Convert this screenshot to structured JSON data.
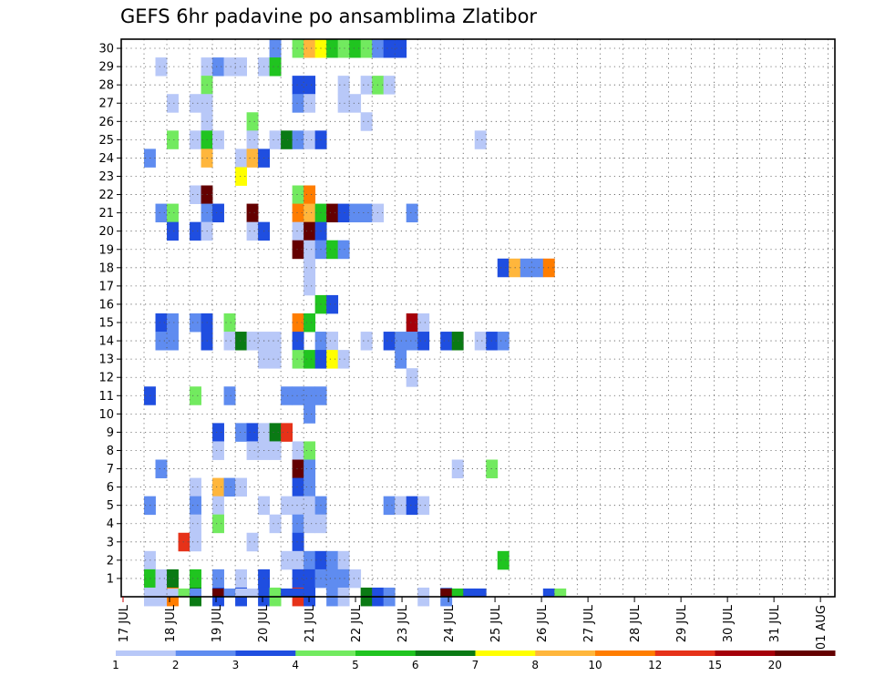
{
  "title": "GEFS 6hr padavine po ansamblima Zlatibor",
  "chart_data": {
    "type": "heatmap",
    "title": "GEFS 6hr padavine po ansamblima Zlatibor",
    "xlabel": "",
    "ylabel": "",
    "x_ticks": [
      "17 JUL",
      "18 JUL",
      "19 JUL",
      "20 JUL",
      "21 JUL",
      "22 JUL",
      "23 JUL",
      "24 JUL",
      "25 JUL",
      "26 JUL",
      "27 JUL",
      "28 JUL",
      "29 JUL",
      "30 JUL",
      "31 JUL",
      "01 AUG"
    ],
    "y_ticks": [
      "1",
      "2",
      "3",
      "4",
      "5",
      "6",
      "7",
      "8",
      "9",
      "10",
      "11",
      "12",
      "13",
      "14",
      "15",
      "16",
      "17",
      "18",
      "19",
      "20",
      "21",
      "22",
      "23",
      "24",
      "25",
      "26",
      "27",
      "28",
      "29",
      "30"
    ],
    "time_steps_per_day": 4,
    "xlim": [
      0,
      60
    ],
    "ylim": [
      0,
      30
    ],
    "grid": true,
    "legend": {
      "placement": "bottom",
      "labels": [
        "1",
        "2",
        "3",
        "4",
        "5",
        "6",
        "7",
        "8",
        "10",
        "12",
        "15",
        "20"
      ],
      "colors": [
        "#b8c8f8",
        "#5f8cf0",
        "#1f4ee0",
        "#72ea5f",
        "#20c420",
        "#0a7a14",
        "#ffff00",
        "#ffb63c",
        "#ff7d00",
        "#e63219",
        "#a5000a",
        "#640000"
      ]
    },
    "cells": [
      [
        30,
        13,
        2
      ],
      [
        30,
        15,
        4
      ],
      [
        30,
        16,
        8
      ],
      [
        30,
        17,
        7
      ],
      [
        30,
        18,
        5
      ],
      [
        30,
        19,
        4
      ],
      [
        30,
        20,
        5
      ],
      [
        30,
        21,
        4
      ],
      [
        30,
        22,
        2
      ],
      [
        30,
        23,
        3
      ],
      [
        30,
        24,
        3
      ],
      [
        29,
        3,
        1
      ],
      [
        29,
        7,
        1
      ],
      [
        29,
        8,
        2
      ],
      [
        29,
        9,
        1
      ],
      [
        29,
        10,
        1
      ],
      [
        29,
        12,
        1
      ],
      [
        29,
        13,
        5
      ],
      [
        28,
        7,
        4
      ],
      [
        28,
        15,
        3
      ],
      [
        28,
        16,
        3
      ],
      [
        28,
        19,
        1
      ],
      [
        28,
        21,
        1
      ],
      [
        28,
        22,
        4
      ],
      [
        28,
        23,
        1
      ],
      [
        27,
        4,
        1
      ],
      [
        27,
        6,
        1
      ],
      [
        27,
        7,
        1
      ],
      [
        27,
        15,
        2
      ],
      [
        27,
        16,
        1
      ],
      [
        27,
        19,
        1
      ],
      [
        27,
        20,
        1
      ],
      [
        26,
        7,
        1
      ],
      [
        26,
        11,
        4
      ],
      [
        26,
        21,
        1
      ],
      [
        25,
        4,
        4
      ],
      [
        25,
        6,
        1
      ],
      [
        25,
        7,
        5
      ],
      [
        25,
        8,
        1
      ],
      [
        25,
        11,
        1
      ],
      [
        25,
        13,
        1
      ],
      [
        25,
        14,
        6
      ],
      [
        25,
        15,
        2
      ],
      [
        25,
        16,
        1
      ],
      [
        25,
        17,
        3
      ],
      [
        25,
        31,
        1
      ],
      [
        24,
        2,
        2
      ],
      [
        24,
        7,
        8
      ],
      [
        24,
        10,
        1
      ],
      [
        24,
        11,
        8
      ],
      [
        24,
        12,
        3
      ],
      [
        23,
        10,
        7
      ],
      [
        22,
        6,
        1
      ],
      [
        22,
        7,
        13
      ],
      [
        22,
        15,
        4
      ],
      [
        22,
        16,
        9
      ],
      [
        21,
        3,
        2
      ],
      [
        21,
        4,
        4
      ],
      [
        21,
        7,
        2
      ],
      [
        21,
        8,
        3
      ],
      [
        21,
        11,
        13
      ],
      [
        21,
        15,
        9
      ],
      [
        21,
        16,
        8
      ],
      [
        21,
        17,
        5
      ],
      [
        21,
        18,
        12
      ],
      [
        21,
        19,
        3
      ],
      [
        21,
        20,
        2
      ],
      [
        21,
        21,
        2
      ],
      [
        21,
        22,
        1
      ],
      [
        21,
        25,
        2
      ],
      [
        20,
        4,
        3
      ],
      [
        20,
        6,
        3
      ],
      [
        20,
        7,
        1
      ],
      [
        20,
        11,
        1
      ],
      [
        20,
        12,
        3
      ],
      [
        20,
        15,
        1
      ],
      [
        20,
        16,
        13
      ],
      [
        20,
        17,
        3
      ],
      [
        19,
        15,
        13
      ],
      [
        19,
        16,
        1
      ],
      [
        19,
        17,
        2
      ],
      [
        19,
        18,
        5
      ],
      [
        19,
        19,
        2
      ],
      [
        18,
        16,
        1
      ],
      [
        18,
        33,
        3
      ],
      [
        18,
        34,
        8
      ],
      [
        18,
        35,
        2
      ],
      [
        18,
        36,
        2
      ],
      [
        18,
        37,
        9
      ],
      [
        17,
        16,
        1
      ],
      [
        16,
        17,
        5
      ],
      [
        16,
        18,
        3
      ],
      [
        15,
        3,
        3
      ],
      [
        15,
        4,
        2
      ],
      [
        15,
        6,
        2
      ],
      [
        15,
        7,
        3
      ],
      [
        15,
        9,
        4
      ],
      [
        15,
        15,
        9
      ],
      [
        15,
        16,
        5
      ],
      [
        15,
        25,
        11
      ],
      [
        15,
        26,
        1
      ],
      [
        14,
        3,
        2
      ],
      [
        14,
        4,
        2
      ],
      [
        14,
        7,
        3
      ],
      [
        14,
        9,
        1
      ],
      [
        14,
        10,
        6
      ],
      [
        14,
        11,
        1
      ],
      [
        14,
        12,
        1
      ],
      [
        14,
        13,
        1
      ],
      [
        14,
        15,
        3
      ],
      [
        14,
        17,
        2
      ],
      [
        14,
        18,
        1
      ],
      [
        14,
        21,
        1
      ],
      [
        14,
        23,
        3
      ],
      [
        14,
        24,
        2
      ],
      [
        14,
        25,
        2
      ],
      [
        14,
        26,
        3
      ],
      [
        14,
        28,
        3
      ],
      [
        14,
        29,
        6
      ],
      [
        14,
        31,
        1
      ],
      [
        14,
        32,
        3
      ],
      [
        14,
        33,
        2
      ],
      [
        13,
        12,
        1
      ],
      [
        13,
        13,
        1
      ],
      [
        13,
        15,
        4
      ],
      [
        13,
        16,
        5
      ],
      [
        13,
        17,
        3
      ],
      [
        13,
        18,
        7
      ],
      [
        13,
        19,
        1
      ],
      [
        13,
        24,
        2
      ],
      [
        12,
        25,
        1
      ],
      [
        11,
        2,
        3
      ],
      [
        11,
        6,
        4
      ],
      [
        11,
        9,
        2
      ],
      [
        11,
        14,
        2
      ],
      [
        11,
        15,
        2
      ],
      [
        11,
        16,
        2
      ],
      [
        11,
        17,
        2
      ],
      [
        10,
        16,
        2
      ],
      [
        9,
        8,
        3
      ],
      [
        9,
        10,
        2
      ],
      [
        9,
        11,
        3
      ],
      [
        9,
        12,
        1
      ],
      [
        9,
        13,
        6
      ],
      [
        9,
        14,
        10
      ],
      [
        8,
        8,
        1
      ],
      [
        8,
        11,
        1
      ],
      [
        8,
        12,
        1
      ],
      [
        8,
        13,
        1
      ],
      [
        8,
        15,
        1
      ],
      [
        8,
        16,
        4
      ],
      [
        7,
        3,
        2
      ],
      [
        7,
        15,
        12
      ],
      [
        7,
        16,
        2
      ],
      [
        7,
        29,
        1
      ],
      [
        7,
        32,
        4
      ],
      [
        6,
        6,
        1
      ],
      [
        6,
        8,
        8
      ],
      [
        6,
        9,
        2
      ],
      [
        6,
        10,
        1
      ],
      [
        6,
        15,
        3
      ],
      [
        6,
        16,
        2
      ],
      [
        5,
        2,
        2
      ],
      [
        5,
        6,
        2
      ],
      [
        5,
        8,
        1
      ],
      [
        5,
        12,
        1
      ],
      [
        5,
        14,
        1
      ],
      [
        5,
        15,
        1
      ],
      [
        5,
        16,
        1
      ],
      [
        5,
        17,
        2
      ],
      [
        5,
        23,
        2
      ],
      [
        5,
        24,
        1
      ],
      [
        5,
        25,
        3
      ],
      [
        5,
        26,
        1
      ],
      [
        4,
        6,
        1
      ],
      [
        4,
        8,
        4
      ],
      [
        4,
        13,
        1
      ],
      [
        4,
        15,
        2
      ],
      [
        4,
        16,
        1
      ],
      [
        4,
        17,
        1
      ],
      [
        3,
        5,
        10
      ],
      [
        3,
        6,
        1
      ],
      [
        3,
        11,
        1
      ],
      [
        3,
        15,
        3
      ],
      [
        2,
        2,
        1
      ],
      [
        2,
        14,
        1
      ],
      [
        2,
        15,
        1
      ],
      [
        2,
        16,
        2
      ],
      [
        2,
        17,
        3
      ],
      [
        2,
        18,
        2
      ],
      [
        2,
        19,
        1
      ],
      [
        2,
        33,
        5
      ],
      [
        1,
        2,
        5
      ],
      [
        1,
        3,
        1
      ],
      [
        1,
        4,
        6
      ],
      [
        1,
        6,
        5
      ],
      [
        1,
        8,
        2
      ],
      [
        1,
        10,
        1
      ],
      [
        1,
        12,
        3
      ],
      [
        1,
        15,
        3
      ],
      [
        1,
        16,
        3
      ],
      [
        1,
        17,
        2
      ],
      [
        1,
        18,
        2
      ],
      [
        1,
        19,
        2
      ],
      [
        1,
        20,
        1
      ],
      [
        0,
        2,
        1
      ],
      [
        0,
        3,
        1
      ],
      [
        0,
        4,
        9
      ],
      [
        0,
        6,
        6
      ],
      [
        0,
        8,
        3
      ],
      [
        0,
        10,
        3
      ],
      [
        0,
        12,
        3
      ],
      [
        0,
        13,
        4
      ],
      [
        0,
        15,
        10
      ],
      [
        0,
        16,
        3
      ],
      [
        0,
        18,
        2
      ],
      [
        0,
        19,
        1
      ],
      [
        0,
        21,
        6
      ],
      [
        0,
        22,
        3
      ],
      [
        0,
        23,
        2
      ],
      [
        0,
        28,
        2
      ],
      [
        0,
        26,
        1
      ],
      [
        -1,
        4,
        1
      ],
      [
        -1,
        5,
        4
      ],
      [
        -1,
        6,
        2
      ],
      [
        -1,
        8,
        13
      ],
      [
        -1,
        9,
        2
      ],
      [
        -1,
        10,
        1
      ],
      [
        -1,
        11,
        1
      ],
      [
        -1,
        14,
        3
      ],
      [
        -1,
        15,
        3
      ],
      [
        -1,
        28,
        12
      ],
      [
        -1,
        29,
        5
      ],
      [
        -1,
        30,
        3
      ],
      [
        -1,
        31,
        3
      ],
      [
        -1,
        37,
        3
      ],
      [
        -1,
        38,
        4
      ]
    ]
  }
}
